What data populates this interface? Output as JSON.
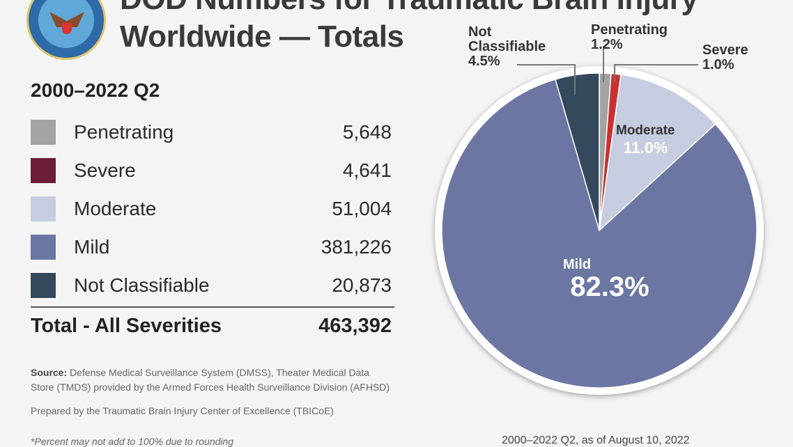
{
  "header": {
    "title_line1": "DOD Numbers for Traumatic Brain Injury",
    "title_line2": "Worldwide — Totals",
    "seal_text": "Department of Defense - United States of America"
  },
  "legend": {
    "period": "2000–2022 Q2",
    "rows": [
      {
        "label": "Penetrating",
        "value": "5,648"
      },
      {
        "label": "Severe",
        "value": "4,641"
      },
      {
        "label": "Moderate",
        "value": "51,004"
      },
      {
        "label": "Mild",
        "value": "381,226"
      },
      {
        "label": "Not Classifiable",
        "value": "20,873"
      }
    ],
    "total_label": "Total - All Severities",
    "total_value": "463,392"
  },
  "footer": {
    "source_label": "Source:",
    "source_text_1": " Defense Medical Surveillance System (DMSS), Theater Medical Data",
    "source_text_2": "Store (TMDS) provided by the Armed Forces Health Surveillance Division (AFHSD)",
    "prepared": "Prepared by the Traumatic Brain Injury Center of Excellence (TBICoE)",
    "footnote": "*Percent may not add to 100% due to rounding",
    "asof": "2000–2022 Q2, as of August 10, 2022"
  },
  "chart_data": {
    "type": "pie",
    "title": "DOD Numbers for Traumatic Brain Injury Worldwide — Totals",
    "start": "12 o'clock, clockwise",
    "slices": [
      {
        "name": "Penetrating",
        "value": 1.2,
        "count": 5648,
        "label": "Penetrating",
        "pct": "1.2%",
        "color": "#a3a3a3"
      },
      {
        "name": "Severe",
        "value": 1.0,
        "count": 4641,
        "label": "Severe",
        "pct": "1.0%",
        "color": "#c8312f",
        "legend_color": "#6b1e35"
      },
      {
        "name": "Moderate",
        "value": 11.0,
        "count": 51004,
        "label": "Moderate",
        "pct": "11.0%",
        "color": "#c6cde0"
      },
      {
        "name": "Mild",
        "value": 82.3,
        "count": 381226,
        "label": "Mild",
        "pct": "82.3%",
        "color": "#6c76a3"
      },
      {
        "name": "Not Classifiable",
        "value": 4.5,
        "count": 20873,
        "label_line1": "Not",
        "label_line2": "Classifiable",
        "pct": "4.5%",
        "color": "#344a5c"
      }
    ]
  }
}
